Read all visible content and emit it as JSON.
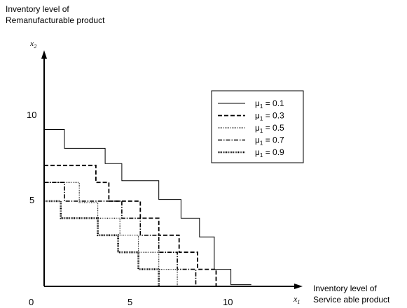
{
  "chart_data": {
    "type": "line",
    "title": "",
    "ylabel_lines": [
      "Inventory level of",
      "Remanufacturable product"
    ],
    "xlabel_lines": [
      "Inventory level of",
      "Service able product"
    ],
    "y_axis_symbol": "x",
    "y_axis_symbol_sub": "2",
    "x_axis_symbol": "x",
    "x_axis_symbol_sub": "1",
    "x_ticks": [
      "0",
      "5",
      "10"
    ],
    "y_ticks": [
      "5",
      "10"
    ],
    "xlim": [
      0,
      13
    ],
    "ylim": [
      0,
      13.5
    ],
    "grid": false,
    "legend_position": "top-right",
    "legend_symbol": "μ",
    "legend_symbol_sub": "1",
    "series": [
      {
        "name": "0.1",
        "style": "solid",
        "points": [
          [
            0,
            9.2
          ],
          [
            1.1,
            9.2
          ],
          [
            1.1,
            8.1
          ],
          [
            3.3,
            8.1
          ],
          [
            3.3,
            7.2
          ],
          [
            4.2,
            7.2
          ],
          [
            4.2,
            6.2
          ],
          [
            6.2,
            6.2
          ],
          [
            6.2,
            5.1
          ],
          [
            7.4,
            5.1
          ],
          [
            7.4,
            4.0
          ],
          [
            8.4,
            4.0
          ],
          [
            8.4,
            2.9
          ],
          [
            9.2,
            2.9
          ],
          [
            9.2,
            1.0
          ],
          [
            10.1,
            1.0
          ],
          [
            10.1,
            0.1
          ],
          [
            11.2,
            0.1
          ]
        ]
      },
      {
        "name": "0.3",
        "style": "dashed",
        "points": [
          [
            0,
            7.1
          ],
          [
            2.8,
            7.1
          ],
          [
            2.8,
            6.1
          ],
          [
            3.5,
            6.1
          ],
          [
            3.5,
            5.0
          ],
          [
            5.2,
            5.0
          ],
          [
            5.2,
            4.0
          ],
          [
            6.2,
            4.0
          ],
          [
            6.2,
            3.0
          ],
          [
            7.3,
            3.0
          ],
          [
            7.3,
            2.0
          ],
          [
            8.3,
            2.0
          ],
          [
            8.3,
            1.0
          ],
          [
            9.3,
            1.0
          ],
          [
            9.3,
            0
          ]
        ]
      },
      {
        "name": "0.5",
        "style": "dotted",
        "points": [
          [
            0,
            8.1
          ],
          [
            0,
            6.1
          ],
          [
            1.9,
            6.1
          ],
          [
            1.9,
            4.9
          ],
          [
            2.9,
            4.9
          ],
          [
            2.9,
            4.0
          ],
          [
            4.1,
            4.0
          ],
          [
            4.1,
            3.0
          ],
          [
            5.1,
            3.0
          ],
          [
            5.1,
            2.0
          ],
          [
            6.2,
            2.0
          ],
          [
            6.2,
            1.0
          ],
          [
            7.2,
            1.0
          ],
          [
            7.2,
            0
          ]
        ]
      },
      {
        "name": "0.7",
        "style": "dashdot",
        "points": [
          [
            0,
            6.1
          ],
          [
            1.1,
            6.1
          ],
          [
            1.1,
            5.0
          ],
          [
            4.2,
            5.0
          ],
          [
            4.2,
            4.0
          ],
          [
            5.2,
            4.0
          ],
          [
            5.2,
            3.0
          ],
          [
            6.2,
            3.0
          ],
          [
            6.2,
            2.0
          ],
          [
            7.2,
            2.0
          ],
          [
            7.2,
            1.0
          ],
          [
            8.2,
            1.0
          ],
          [
            8.2,
            0
          ]
        ]
      },
      {
        "name": "0.9",
        "style": "bolddotted",
        "points": [
          [
            0,
            5.0
          ],
          [
            0.9,
            5.0
          ],
          [
            0.9,
            4.0
          ],
          [
            2.9,
            4.0
          ],
          [
            2.9,
            3.0
          ],
          [
            4.0,
            3.0
          ],
          [
            4.0,
            2.0
          ],
          [
            5.1,
            2.0
          ],
          [
            5.1,
            1.0
          ],
          [
            6.2,
            1.0
          ],
          [
            6.2,
            0
          ]
        ]
      }
    ]
  }
}
